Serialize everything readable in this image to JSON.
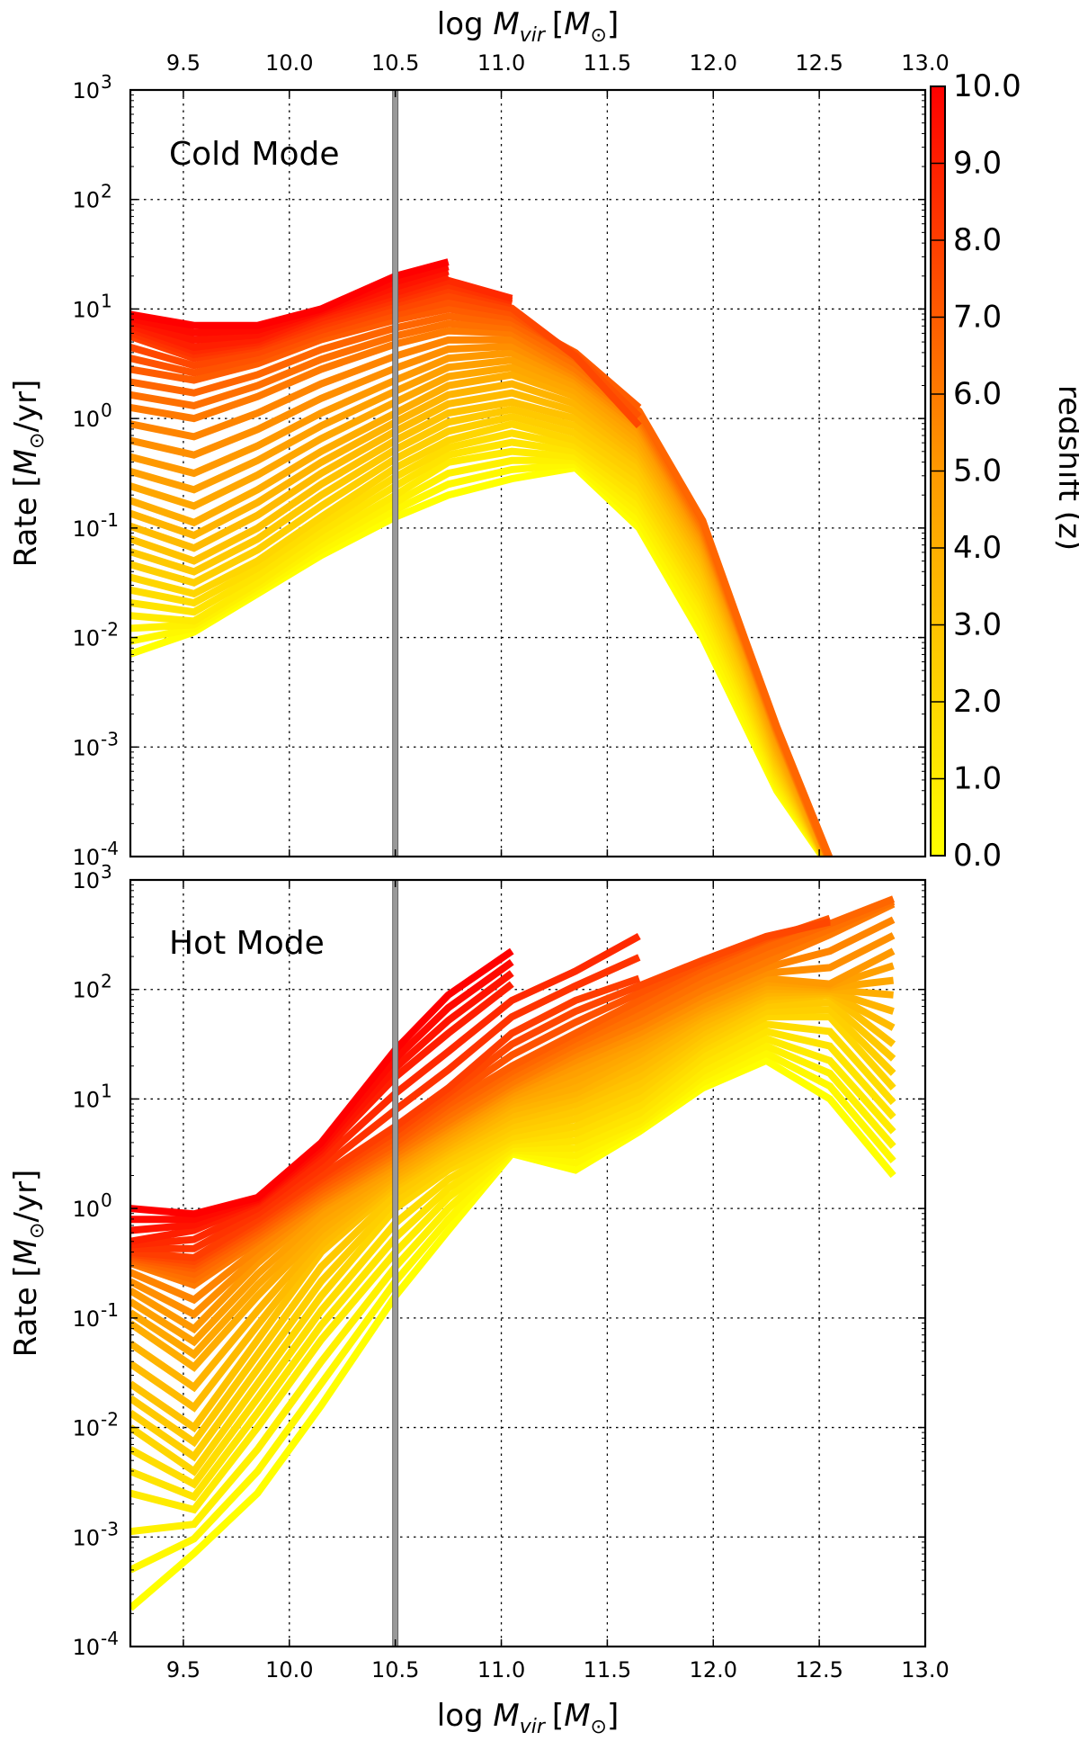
{
  "chart_data": {
    "type": "line",
    "x_axis": {
      "label_text": "log ",
      "label_symbol": "M",
      "label_subscript": "vir",
      "label_unit_open": "[",
      "label_unit_symbol": "M",
      "label_unit_subscript": "⊙",
      "label_unit_close": "]",
      "range": [
        9.25,
        13.0
      ],
      "ticks": [
        9.5,
        10.0,
        10.5,
        11.0,
        11.5,
        12.0,
        12.5,
        13.0
      ],
      "tick_labels": [
        "9.5",
        "10.0",
        "10.5",
        "11.0",
        "11.5",
        "12.0",
        "12.5",
        "13.0"
      ]
    },
    "y_axis": {
      "label_prefix": "Rate [",
      "label_symbol": "M",
      "label_subscript": "⊙",
      "label_suffix": "/yr]",
      "scale": "log",
      "range_exponent": [
        -4,
        3
      ],
      "tick_exponents": [
        -4,
        -3,
        -2,
        -1,
        0,
        1,
        2,
        3
      ]
    },
    "vertical_marker": {
      "x": 10.5,
      "color": "#999999"
    },
    "colorbar": {
      "label": "redshift (z)",
      "range": [
        0.0,
        10.0
      ],
      "ticks": [
        0,
        1,
        2,
        3,
        4,
        5,
        6,
        7,
        8,
        9,
        10
      ],
      "tick_labels": [
        "0.0",
        "1.0",
        "2.0",
        "3.0",
        "4.0",
        "5.0",
        "6.0",
        "7.0",
        "8.0",
        "9.0",
        "10.0"
      ],
      "cmap_low": "#ffff00",
      "cmap_mid": "#ff9900",
      "cmap_high": "#ff0000"
    },
    "panels": [
      {
        "id": "cold",
        "title": "Cold Mode",
        "series": [
          {
            "z": 10.0,
            "x": [
              9.25,
              9.55,
              9.85,
              10.15,
              10.5,
              10.75
            ],
            "log_y": [
              0.95,
              0.85,
              0.85,
              1.0,
              1.3,
              1.43
            ]
          },
          {
            "z": 9.0,
            "x": [
              9.25,
              9.55,
              9.85,
              10.15,
              10.5,
              10.75,
              11.05
            ],
            "log_y": [
              0.85,
              0.65,
              0.72,
              0.95,
              1.15,
              1.3,
              1.12
            ]
          },
          {
            "z": 8.0,
            "x": [
              9.25,
              9.55,
              9.85,
              10.15,
              10.5,
              10.75,
              11.05,
              11.35,
              11.65
            ],
            "log_y": [
              0.75,
              0.55,
              0.65,
              0.85,
              1.05,
              1.18,
              1.05,
              0.55,
              -0.15
            ]
          },
          {
            "z": 7.0,
            "x": [
              9.25,
              9.55,
              9.85,
              10.15,
              10.5,
              10.75,
              11.05,
              11.35,
              11.65,
              11.95,
              12.15,
              12.3,
              12.55
            ],
            "log_y": [
              0.45,
              0.35,
              0.5,
              0.72,
              0.9,
              1.0,
              0.92,
              0.6,
              0.1,
              -0.9,
              -2.0,
              -2.8,
              -4.0
            ]
          },
          {
            "z": 6.0,
            "x": [
              9.25,
              9.55,
              9.85,
              10.15,
              10.5,
              10.75,
              11.05,
              11.35,
              11.65,
              11.95,
              12.15,
              12.3,
              12.55
            ],
            "log_y": [
              0.1,
              0.0,
              0.2,
              0.45,
              0.68,
              0.8,
              0.78,
              0.45,
              0.0,
              -1.0,
              -2.05,
              -2.85,
              -4.05
            ]
          },
          {
            "z": 5.0,
            "x": [
              9.25,
              9.55,
              9.85,
              10.15,
              10.5,
              10.75,
              11.05,
              11.35,
              11.65,
              11.95,
              12.15,
              12.3,
              12.55
            ],
            "log_y": [
              -0.35,
              -0.5,
              -0.25,
              0.05,
              0.35,
              0.55,
              0.6,
              0.35,
              -0.1,
              -1.1,
              -2.1,
              -2.9,
              -4.05
            ]
          },
          {
            "z": 4.0,
            "x": [
              9.25,
              9.55,
              9.85,
              10.15,
              10.5,
              10.75,
              11.05,
              11.35,
              11.65,
              11.95,
              12.15,
              12.3,
              12.55
            ],
            "log_y": [
              -0.75,
              -0.95,
              -0.65,
              -0.3,
              0.05,
              0.3,
              0.4,
              0.2,
              -0.25,
              -1.2,
              -2.2,
              -3.0,
              -4.1
            ]
          },
          {
            "z": 3.0,
            "x": [
              9.25,
              9.55,
              9.85,
              10.15,
              10.5,
              10.75,
              11.05,
              11.35,
              11.65,
              11.95,
              12.15,
              12.3,
              12.55
            ],
            "log_y": [
              -1.1,
              -1.3,
              -1.0,
              -0.6,
              -0.2,
              0.05,
              0.15,
              0.0,
              -0.4,
              -1.35,
              -2.3,
              -3.1,
              -4.1
            ]
          },
          {
            "z": 2.0,
            "x": [
              9.25,
              9.55,
              9.85,
              10.15,
              10.5,
              10.75,
              11.05,
              11.35,
              11.65,
              11.95,
              12.15,
              12.3,
              12.55
            ],
            "log_y": [
              -1.45,
              -1.6,
              -1.3,
              -0.9,
              -0.45,
              -0.2,
              -0.05,
              -0.2,
              -0.6,
              -1.55,
              -2.45,
              -3.2,
              -4.1
            ]
          },
          {
            "z": 1.0,
            "x": [
              9.25,
              9.55,
              9.85,
              10.15,
              10.5,
              10.75,
              11.05,
              11.35,
              11.65,
              11.95,
              12.15,
              12.3,
              12.55
            ],
            "log_y": [
              -1.8,
              -1.85,
              -1.5,
              -1.1,
              -0.7,
              -0.4,
              -0.3,
              -0.35,
              -0.8,
              -1.75,
              -2.6,
              -3.3,
              -4.1
            ]
          },
          {
            "z": 0.0,
            "x": [
              9.25,
              9.55,
              9.85,
              10.15,
              10.5,
              10.75,
              11.05,
              11.35,
              11.65,
              11.95,
              12.15,
              12.3,
              12.55
            ],
            "log_y": [
              -2.15,
              -1.95,
              -1.6,
              -1.25,
              -0.9,
              -0.7,
              -0.55,
              -0.45,
              -1.0,
              -2.0,
              -2.8,
              -3.4,
              -4.1
            ]
          }
        ]
      },
      {
        "id": "hot",
        "title": "Hot Mode",
        "series": [
          {
            "z": 10.0,
            "x": [
              9.25,
              9.55,
              9.85,
              10.15,
              10.5,
              10.75,
              11.05
            ],
            "log_y": [
              0.0,
              -0.05,
              0.1,
              0.6,
              1.45,
              1.95,
              2.35
            ]
          },
          {
            "z": 9.0,
            "x": [
              9.25,
              9.55,
              9.85,
              10.15,
              10.5,
              10.75,
              11.05,
              11.35,
              11.65
            ],
            "log_y": [
              -0.3,
              -0.2,
              0.05,
              0.5,
              1.2,
              1.6,
              2.05,
              2.3,
              2.68
            ]
          },
          {
            "z": 8.0,
            "x": [
              9.25,
              9.55,
              9.85,
              10.15,
              10.5,
              10.75,
              11.05,
              11.35,
              11.65,
              11.95,
              12.25,
              12.55
            ],
            "log_y": [
              -0.4,
              -0.45,
              -0.1,
              0.3,
              0.75,
              1.1,
              1.6,
              1.9,
              2.1,
              2.3,
              2.5,
              2.6
            ]
          },
          {
            "z": 7.0,
            "x": [
              9.25,
              9.55,
              9.85,
              10.15,
              10.5,
              10.75,
              11.05,
              11.35,
              11.65,
              11.95,
              12.25,
              12.55,
              12.85
            ],
            "log_y": [
              -0.45,
              -0.55,
              -0.2,
              0.2,
              0.6,
              0.95,
              1.3,
              1.6,
              1.9,
              2.2,
              2.45,
              2.65,
              2.85
            ]
          },
          {
            "z": 6.0,
            "x": [
              9.25,
              9.55,
              9.85,
              10.15,
              10.5,
              10.75,
              11.05,
              11.35,
              11.65,
              11.95,
              12.25,
              12.55,
              12.85
            ],
            "log_y": [
              -0.5,
              -0.7,
              -0.3,
              0.1,
              0.5,
              0.8,
              1.15,
              1.45,
              1.7,
              2.0,
              2.25,
              2.5,
              2.78
            ]
          },
          {
            "z": 5.0,
            "x": [
              9.25,
              9.55,
              9.85,
              10.15,
              10.5,
              10.75,
              11.05,
              11.35,
              11.65,
              11.95,
              12.25,
              12.55,
              12.85
            ],
            "log_y": [
              -0.75,
              -1.1,
              -0.5,
              0.0,
              0.4,
              0.7,
              1.05,
              1.3,
              1.55,
              1.85,
              2.1,
              2.05,
              2.35
            ]
          },
          {
            "z": 4.0,
            "x": [
              9.25,
              9.55,
              9.85,
              10.15,
              10.5,
              10.75,
              11.05,
              11.35,
              11.65,
              11.95,
              12.25,
              12.55,
              12.85
            ],
            "log_y": [
              -1.05,
              -1.45,
              -0.8,
              -0.2,
              0.3,
              0.6,
              0.95,
              1.1,
              1.4,
              1.75,
              2.0,
              2.0,
              1.95
            ]
          },
          {
            "z": 3.0,
            "x": [
              9.25,
              9.55,
              9.85,
              10.15,
              10.5,
              10.75,
              11.05,
              11.35,
              11.65,
              11.95,
              12.25,
              12.55,
              12.85
            ],
            "log_y": [
              -1.6,
              -2.0,
              -1.2,
              -0.4,
              0.2,
              0.5,
              0.8,
              0.95,
              1.2,
              1.6,
              1.9,
              1.95,
              1.5
            ]
          },
          {
            "z": 2.0,
            "x": [
              9.25,
              9.55,
              9.85,
              10.15,
              10.5,
              10.75,
              11.05,
              11.35,
              11.65,
              11.95,
              12.25,
              12.55,
              12.85
            ],
            "log_y": [
              -2.0,
              -2.4,
              -1.6,
              -0.8,
              0.0,
              0.35,
              0.65,
              0.75,
              1.0,
              1.45,
              1.75,
              1.75,
              1.1
            ]
          },
          {
            "z": 1.0,
            "x": [
              9.25,
              9.55,
              9.85,
              10.15,
              10.5,
              10.75,
              11.05,
              11.35,
              11.65,
              11.95,
              12.25,
              12.55,
              12.85
            ],
            "log_y": [
              -2.6,
              -2.75,
              -2.0,
              -1.2,
              -0.4,
              0.1,
              0.55,
              0.55,
              0.8,
              1.25,
              1.55,
              1.35,
              0.7
            ]
          },
          {
            "z": 0.0,
            "x": [
              9.25,
              9.55,
              9.85,
              10.15,
              10.5,
              10.75,
              11.05,
              11.35,
              11.65,
              11.95,
              12.25,
              12.55,
              12.85
            ],
            "log_y": [
              -3.65,
              -3.15,
              -2.6,
              -1.8,
              -0.8,
              -0.2,
              0.5,
              0.35,
              0.7,
              1.1,
              1.35,
              1.0,
              0.3
            ]
          }
        ]
      }
    ]
  }
}
